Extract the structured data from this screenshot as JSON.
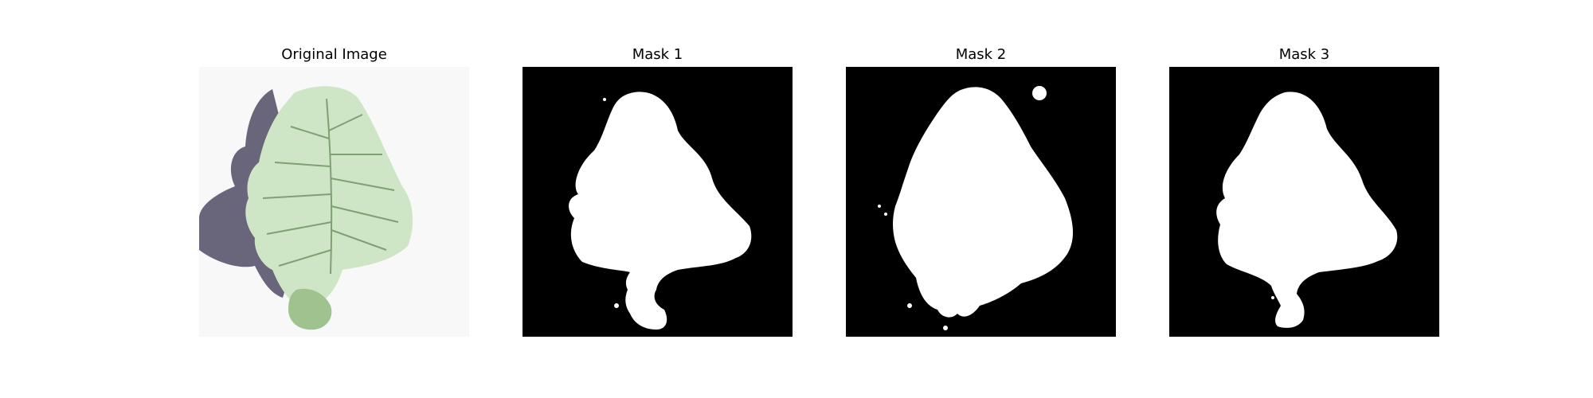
{
  "figure": {
    "panels": [
      {
        "title": "Original Image",
        "kind": "photo",
        "subject": "leaf-icon"
      },
      {
        "title": "Mask 1",
        "kind": "mask"
      },
      {
        "title": "Mask 2",
        "kind": "mask"
      },
      {
        "title": "Mask 3",
        "kind": "mask"
      }
    ]
  },
  "colors": {
    "mask_background": "#000000",
    "mask_foreground": "#ffffff",
    "leaf_fill": "#cfe6c6",
    "leaf_vein": "#7f9f74",
    "leaf_shadow": "#3a3552",
    "photo_background": "#f8f8f8"
  }
}
